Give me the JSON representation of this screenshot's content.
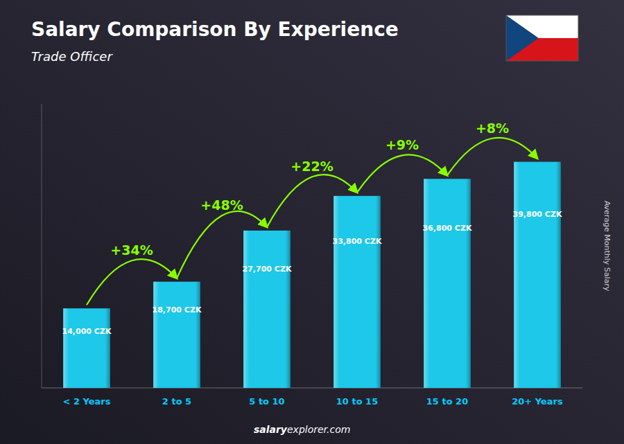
{
  "chart_data": {
    "type": "bar",
    "title": "Salary Comparison By Experience",
    "subtitle": "Trade Officer",
    "y_label": "Average Monthly Salary",
    "footer": [
      "salary",
      "explorer.com"
    ],
    "categories": [
      "< 2 Years",
      "2 to 5",
      "5 to 10",
      "10 to 15",
      "15 to 20",
      "20+ Years"
    ],
    "values": [
      14000,
      18700,
      27700,
      33800,
      36800,
      39800
    ],
    "value_labels": [
      "14,000 CZK",
      "18,700 CZK",
      "27,700 CZK",
      "33,800 CZK",
      "36,800 CZK",
      "39,800 CZK"
    ],
    "data_labels": true,
    "annotations": [
      "+34%",
      "+48%",
      "+22%",
      "+9%",
      "+8%"
    ],
    "color": "#1EC8E8",
    "ylim": [
      0,
      50000
    ],
    "tick_labels": "x",
    "grid": false
  }
}
